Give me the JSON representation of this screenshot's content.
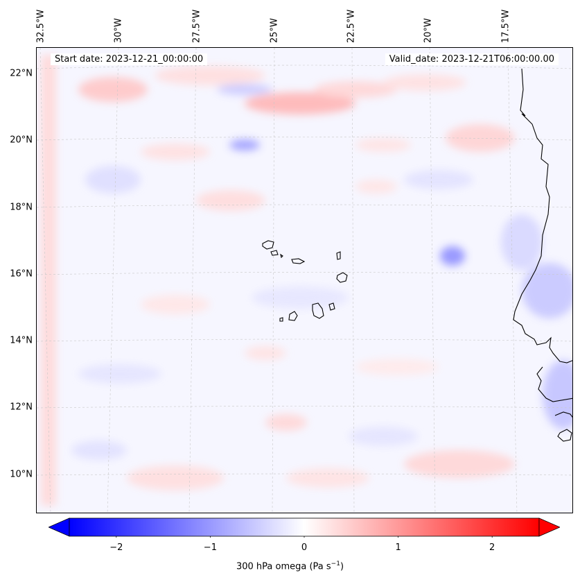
{
  "map": {
    "start_date": "Start date: 2023-12-21_00:00:00",
    "valid_date": "Valid_date: 2023-12-21T06:00:00.00",
    "lon_labels": [
      "32.5°W",
      "30°W",
      "27.5°W",
      "25°W",
      "22.5°W",
      "20°W",
      "17.5°W"
    ],
    "lat_labels": [
      "22°N",
      "20°N",
      "18°N",
      "16°N",
      "14°N",
      "12°N",
      "10°N"
    ],
    "extent": {
      "lon_min": -33.0,
      "lon_max": -16.0,
      "lat_min": 8.9,
      "lat_max": 22.8
    },
    "features": [
      "West African coastline",
      "Cape Verde islands"
    ]
  },
  "colorbar": {
    "label_prefix": "300 hPa omega (Pa s",
    "label_sup": "−1",
    "label_suffix": ")",
    "ticks": [
      "−2",
      "−1",
      "0",
      "1",
      "2"
    ],
    "vmin": -2.5,
    "vmax": 2.5,
    "extend": "both",
    "colormap": "bwr",
    "colors": {
      "negative": "#0000ff",
      "zero": "#ffffff",
      "positive": "#ff0000"
    }
  }
}
